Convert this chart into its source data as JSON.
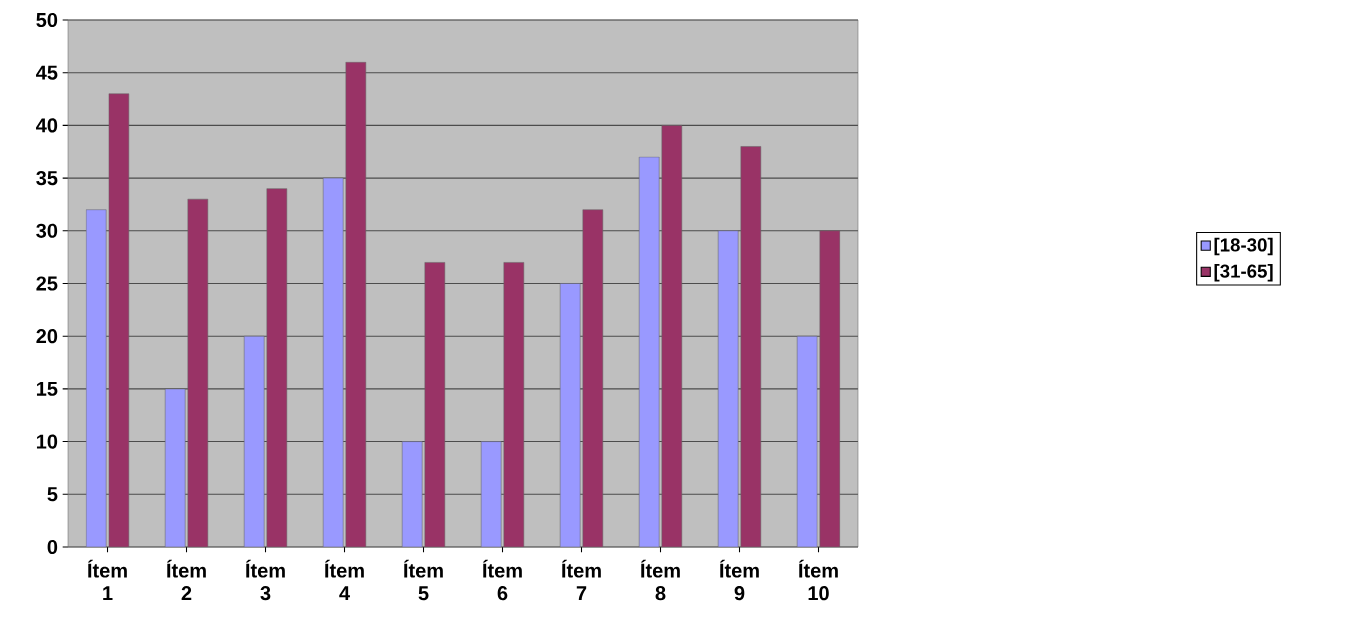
{
  "chart_data": {
    "type": "bar",
    "categories": [
      "Ítem 1",
      "Ítem 2",
      "Ítem 3",
      "Ítem 4",
      "Ítem 5",
      "Ítem 6",
      "Ítem 7",
      "Ítem 8",
      "Ítem 9",
      "Ítem 10"
    ],
    "series": [
      {
        "name": "[18-30]",
        "color": "#9999ff",
        "values": [
          32,
          15,
          20,
          35,
          10,
          10,
          25,
          37,
          30,
          20
        ]
      },
      {
        "name": "[31-65]",
        "color": "#993366",
        "values": [
          43,
          33,
          34,
          46,
          27,
          27,
          32,
          40,
          38,
          30
        ]
      }
    ],
    "ylim": [
      0,
      50
    ],
    "yticks": [
      0,
      5,
      10,
      15,
      20,
      25,
      30,
      35,
      40,
      45,
      50
    ],
    "grid": "y",
    "legend": "right"
  }
}
